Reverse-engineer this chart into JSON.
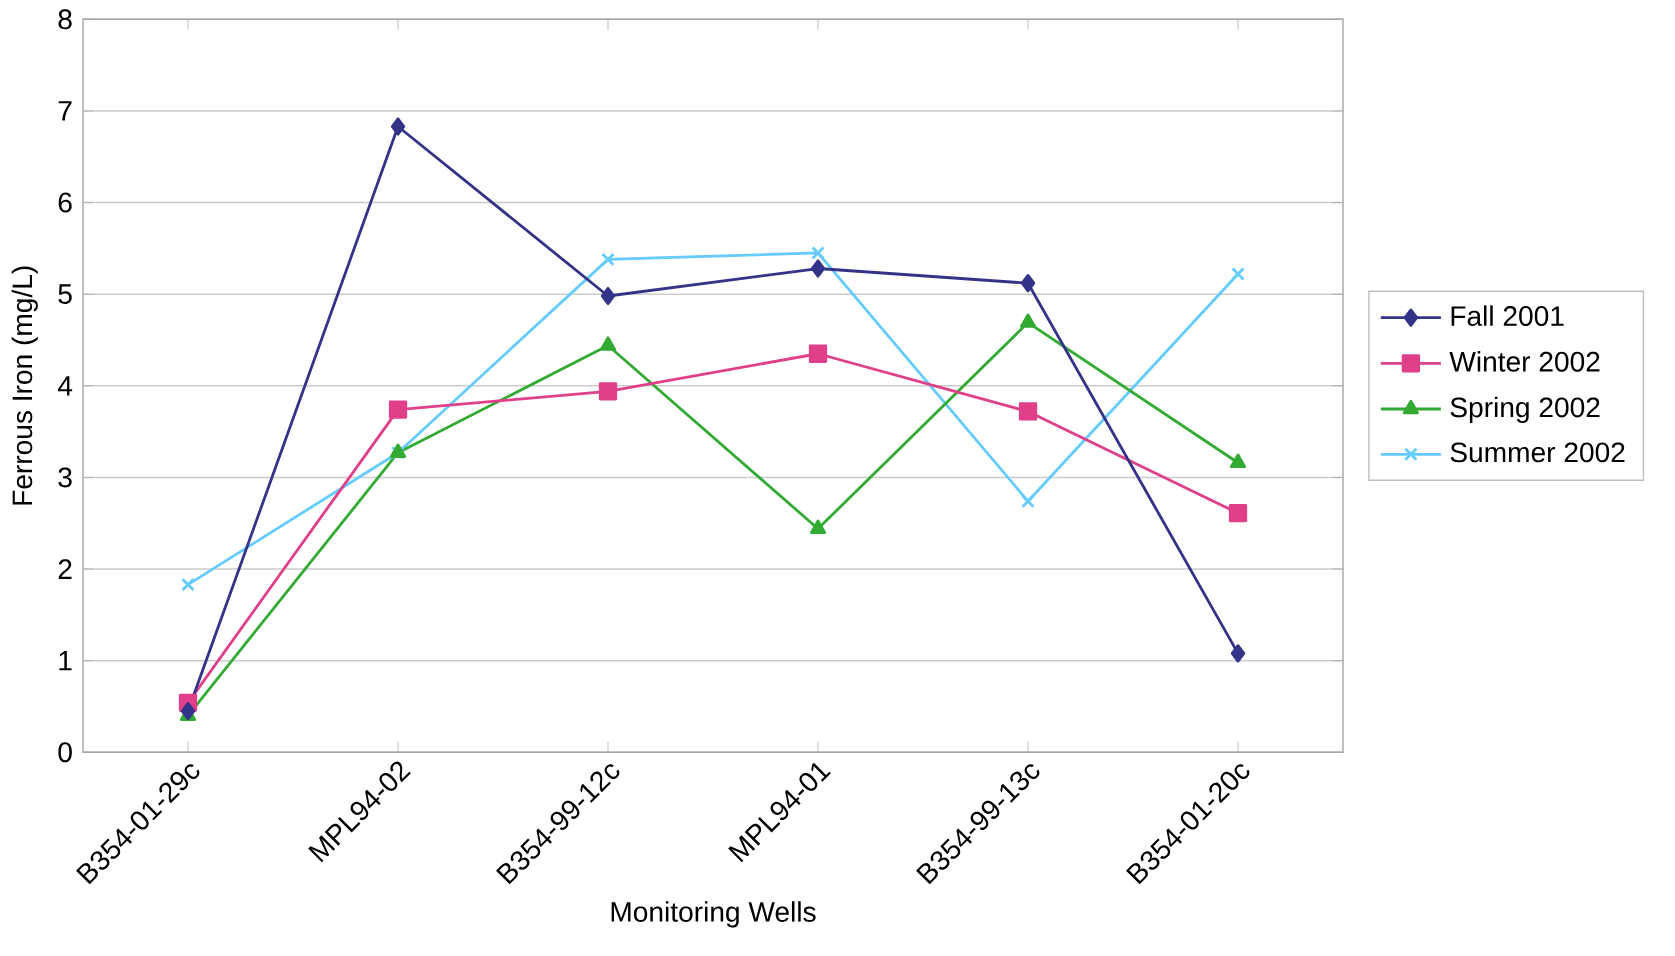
{
  "chart_data": {
    "type": "line",
    "xlabel": "Monitoring Wells",
    "ylabel": "Ferrous Iron (mg/L)",
    "categories": [
      "B354-01-29c",
      "MPL94-02",
      "B354-99-12c",
      "MPL94-01",
      "B354-99-13c",
      "B354-01-20c"
    ],
    "series": [
      {
        "name": "Fall 2001",
        "color": "#333388",
        "marker": "diamond",
        "values": [
          0.45,
          6.83,
          4.98,
          5.28,
          5.12,
          1.08
        ]
      },
      {
        "name": "Winter 2002",
        "color": "#e0408a",
        "marker": "square",
        "values": [
          0.54,
          3.74,
          3.94,
          4.35,
          3.72,
          2.61
        ]
      },
      {
        "name": "Spring 2002",
        "color": "#33aa33",
        "marker": "triangle",
        "values": [
          0.4,
          3.27,
          4.44,
          2.44,
          4.69,
          3.16
        ]
      },
      {
        "name": "Summer 2002",
        "color": "#66ccff",
        "marker": "cross",
        "values": [
          1.83,
          3.27,
          5.38,
          5.45,
          2.74,
          5.22
        ]
      }
    ],
    "ylim": [
      0,
      8
    ],
    "yticks": [
      0,
      1,
      2,
      3,
      4,
      5,
      6,
      7,
      8
    ],
    "grid": "y",
    "legend": "right",
    "line_style": "solid"
  }
}
